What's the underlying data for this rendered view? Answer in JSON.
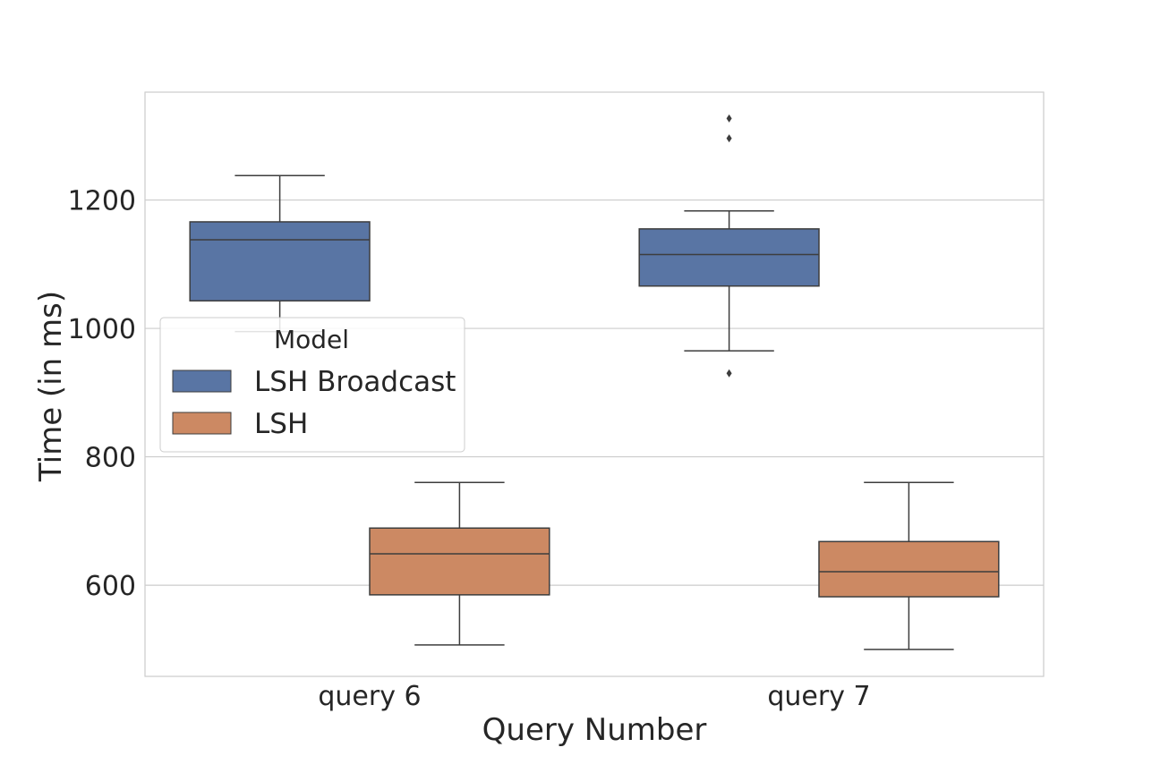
{
  "chart_data": {
    "type": "box",
    "xlabel": "Query Number",
    "ylabel": "Time (in ms)",
    "ylim": [
      458,
      1368
    ],
    "yticks": [
      600,
      800,
      1000,
      1200
    ],
    "grid": true,
    "categories": [
      "query 6",
      "query 7"
    ],
    "legend": {
      "title": "Model",
      "placement": "center-left"
    },
    "series": [
      {
        "name": "LSH Broadcast",
        "color": "#5975a4",
        "boxes": [
          {
            "category": "query 6",
            "whisker_low": 995,
            "q1": 1043,
            "median": 1138,
            "q3": 1166,
            "whisker_high": 1238,
            "outliers": []
          },
          {
            "category": "query 7",
            "whisker_low": 965,
            "q1": 1066,
            "median": 1115,
            "q3": 1155,
            "whisker_high": 1183,
            "outliers": [
              930,
              1296,
              1327
            ]
          }
        ]
      },
      {
        "name": "LSH",
        "color": "#cc8963",
        "boxes": [
          {
            "category": "query 6",
            "whisker_low": 507,
            "q1": 585,
            "median": 649,
            "q3": 689,
            "whisker_high": 760,
            "outliers": []
          },
          {
            "category": "query 7",
            "whisker_low": 500,
            "q1": 582,
            "median": 621,
            "q3": 668,
            "whisker_high": 760,
            "outliers": []
          }
        ]
      }
    ]
  }
}
